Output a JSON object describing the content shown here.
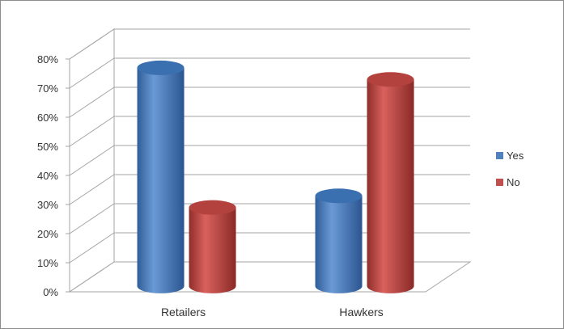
{
  "chart_data": {
    "type": "bar",
    "style": "3d-cylinder",
    "categories": [
      "Retailers",
      "Hawkers"
    ],
    "series": [
      {
        "name": "Yes",
        "color": "#4f81bd",
        "values": [
          75,
          31
        ]
      },
      {
        "name": "No",
        "color": "#c0504d",
        "values": [
          27,
          71
        ]
      }
    ],
    "ylim": [
      0,
      80
    ],
    "yticks": [
      "0%",
      "10%",
      "20%",
      "30%",
      "40%",
      "50%",
      "60%",
      "70%",
      "80%"
    ],
    "grid": true,
    "legend": "right",
    "title": "",
    "xlabel": "",
    "ylabel": ""
  }
}
